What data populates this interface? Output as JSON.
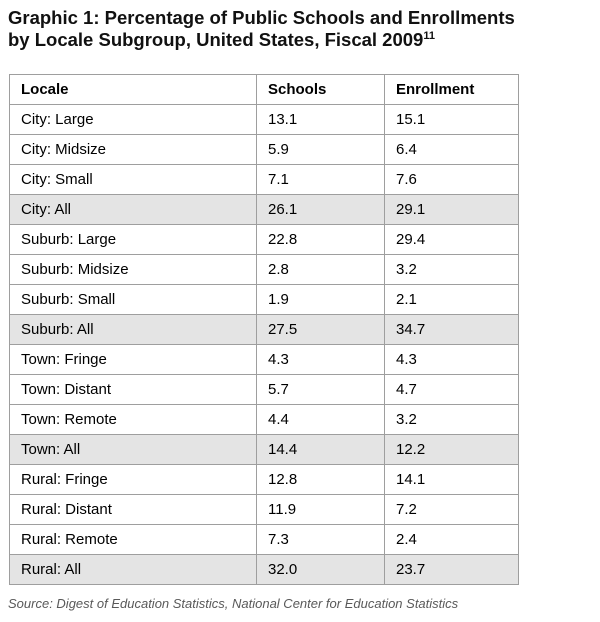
{
  "page": {
    "title_line1": "Graphic 1: Percentage of Public Schools and Enrollments",
    "title_line2": "by Locale Subgroup, United States, Fiscal 2009",
    "title_footnote": "11",
    "source": "Source: Digest of Education Statistics, National Center for Education Statistics"
  },
  "colors": {
    "summary_row_background": "#e4e4e4",
    "table_border": "#9e9e9e",
    "title_text": "#111111",
    "source_text": "#595959"
  },
  "chart_data": {
    "type": "table",
    "title": "Graphic 1: Percentage of Public Schools and Enrollments by Locale Subgroup, United States, Fiscal 2009",
    "columns": [
      "Locale",
      "Schools",
      "Enrollment"
    ],
    "rows": [
      {
        "locale": "City: Large",
        "schools": "13.1",
        "enrollment": "15.1",
        "summary": false
      },
      {
        "locale": "City: Midsize",
        "schools": "5.9",
        "enrollment": "6.4",
        "summary": false
      },
      {
        "locale": "City: Small",
        "schools": "7.1",
        "enrollment": "7.6",
        "summary": false
      },
      {
        "locale": "City: All",
        "schools": "26.1",
        "enrollment": "29.1",
        "summary": true
      },
      {
        "locale": "Suburb: Large",
        "schools": "22.8",
        "enrollment": "29.4",
        "summary": false
      },
      {
        "locale": "Suburb: Midsize",
        "schools": "2.8",
        "enrollment": "3.2",
        "summary": false
      },
      {
        "locale": "Suburb: Small",
        "schools": "1.9",
        "enrollment": "2.1",
        "summary": false
      },
      {
        "locale": "Suburb: All",
        "schools": "27.5",
        "enrollment": "34.7",
        "summary": true
      },
      {
        "locale": "Town: Fringe",
        "schools": "4.3",
        "enrollment": "4.3",
        "summary": false
      },
      {
        "locale": "Town: Distant",
        "schools": "5.7",
        "enrollment": "4.7",
        "summary": false
      },
      {
        "locale": "Town: Remote",
        "schools": "4.4",
        "enrollment": "3.2",
        "summary": false
      },
      {
        "locale": "Town: All",
        "schools": "14.4",
        "enrollment": "12.2",
        "summary": true
      },
      {
        "locale": "Rural: Fringe",
        "schools": "12.8",
        "enrollment": "14.1",
        "summary": false
      },
      {
        "locale": "Rural: Distant",
        "schools": "11.9",
        "enrollment": "7.2",
        "summary": false
      },
      {
        "locale": "Rural: Remote",
        "schools": "7.3",
        "enrollment": "2.4",
        "summary": false
      },
      {
        "locale": "Rural: All",
        "schools": "32.0",
        "enrollment": "23.7",
        "summary": true
      }
    ]
  }
}
